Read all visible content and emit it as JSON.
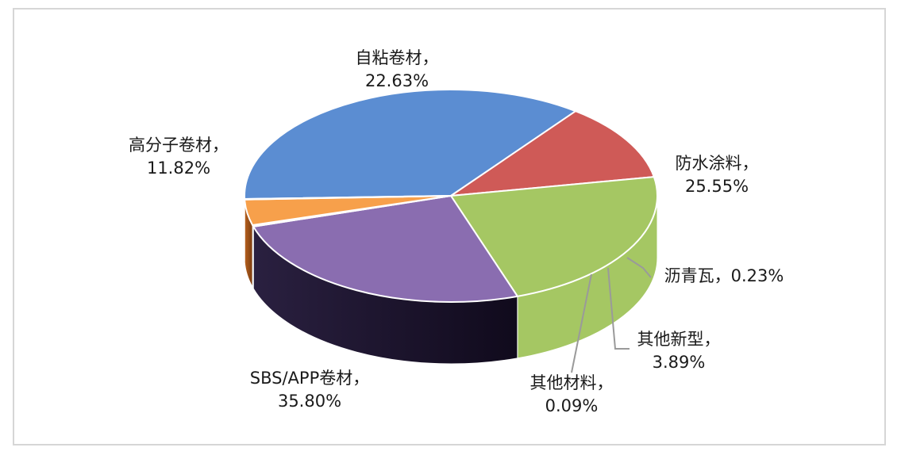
{
  "chart_data": {
    "type": "pie",
    "title": "",
    "slices": [
      {
        "name": "SBS/APP卷材",
        "value": 35.8,
        "label": "35.80%",
        "color": "#5b8dd2"
      },
      {
        "name": "高分子卷材",
        "value": 11.82,
        "label": "11.82%",
        "color": "#cf5a57"
      },
      {
        "name": "自粘卷材",
        "value": 22.63,
        "label": "22.63%",
        "color": "#a5c763"
      },
      {
        "name": "防水涂料",
        "value": 25.55,
        "label": "25.55%",
        "color": "#8a6db0"
      },
      {
        "name": "沥青瓦",
        "value": 0.23,
        "label": "0.23%",
        "color": "#3ba7c7"
      },
      {
        "name": "其他新型",
        "value": 3.89,
        "label": "3.89%",
        "color": "#f7a04b"
      },
      {
        "name": "其他材料",
        "value": 0.09,
        "label": "0.09%",
        "color": "#8da6d4"
      }
    ],
    "legend": "none",
    "data_labels": "outside-with-leader-lines"
  }
}
